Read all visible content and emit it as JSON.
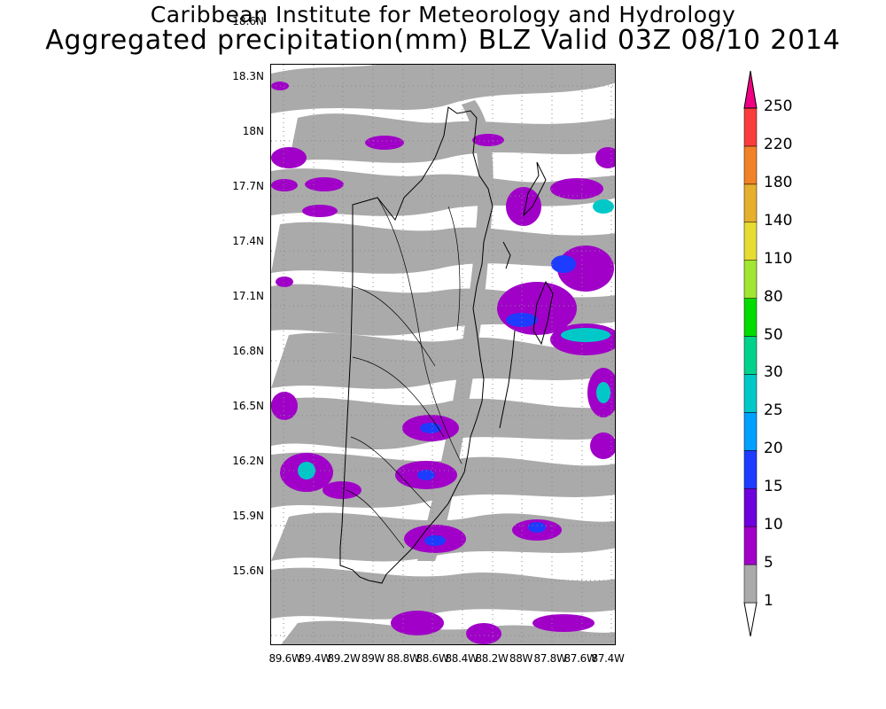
{
  "header": {
    "institute": "Caribbean Institute for Meteorology and Hydrology",
    "product": "Aggregated precipitation(mm) BLZ Valid 03Z 08/10 2014"
  },
  "map": {
    "region": "BLZ",
    "latitude_labels": [
      "18.6N",
      "18.3N",
      "18N",
      "17.7N",
      "17.4N",
      "17.1N",
      "16.8N",
      "16.5N",
      "16.2N",
      "15.9N",
      "15.6N"
    ],
    "longitude_labels": [
      "89.6W",
      "89.4W",
      "89.2W",
      "89W",
      "88.8W",
      "88.6W",
      "88.4W",
      "88.2W",
      "88W",
      "87.8W",
      "87.6W",
      "87.4W"
    ],
    "grid_lines": true
  },
  "legend": {
    "unit": "mm",
    "levels": [
      "1",
      "5",
      "10",
      "15",
      "20",
      "25",
      "30",
      "50",
      "80",
      "110",
      "140",
      "180",
      "220",
      "250"
    ],
    "colors": [
      "#aaaaaa",
      "#a000c8",
      "#6e00dc",
      "#1e3cff",
      "#00a0ff",
      "#00c8c8",
      "#00d28c",
      "#00dc00",
      "#a0e632",
      "#e6dc32",
      "#e6af2d",
      "#f08228",
      "#fa3c3c",
      "#f00082"
    ]
  }
}
